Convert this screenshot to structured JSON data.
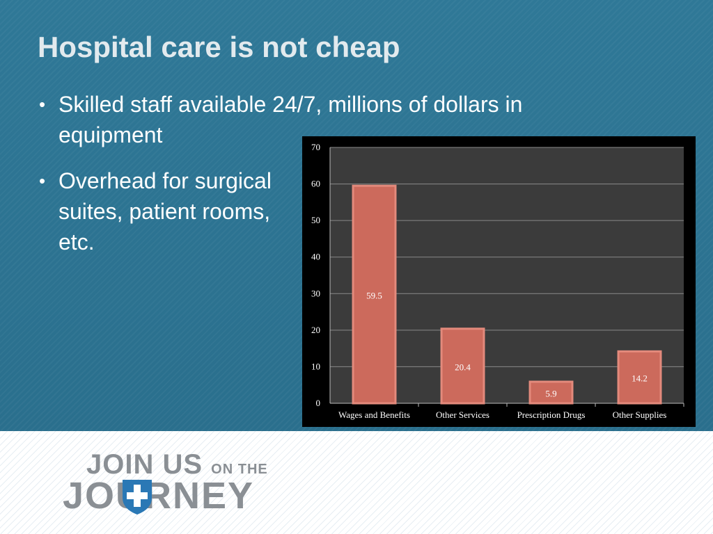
{
  "slide": {
    "title": "Hospital care is not cheap",
    "bullets": [
      "Skilled staff available 24/7, millions of dollars in equipment",
      "Overhead for surgical suites, patient rooms, etc."
    ]
  },
  "logo": {
    "line1_main": "JOIN US",
    "line1_small": "ON THE",
    "line2": "JOURNEY",
    "text_color": "#8a8f94",
    "shield_color": "#2a78b5"
  },
  "colors": {
    "background": "#2f7897",
    "bar_fill": "#cc6a5c",
    "bar_stroke": "#e38a7c",
    "plot_bg": "#3b3b3b"
  },
  "chart_data": {
    "type": "bar",
    "categories": [
      "Wages and Benefits",
      "Other Services",
      "Prescription Drugs",
      "Other Supplies"
    ],
    "values": [
      59.5,
      20.4,
      5.9,
      14.2
    ],
    "data_labels": [
      "59.5",
      "20.4",
      "5.9",
      "14.2"
    ],
    "yticks": [
      0,
      10,
      20,
      30,
      40,
      50,
      60,
      70
    ],
    "ylim": [
      0,
      70
    ],
    "grid": true,
    "legend": "none"
  }
}
